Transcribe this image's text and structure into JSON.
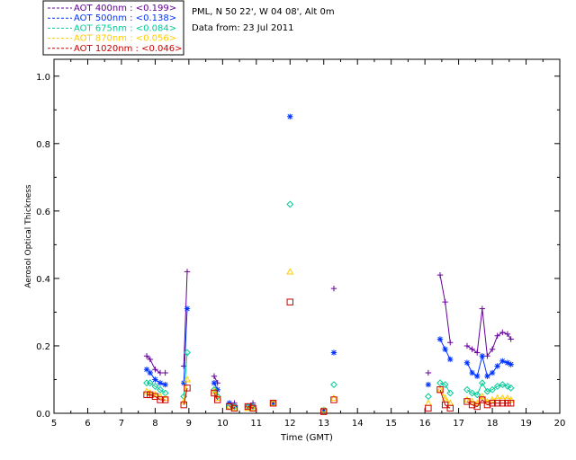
{
  "header": {
    "site": "PML, N 50 22', W 04 08', Alt 0m",
    "date_line": "Data from: 23 Jul 2011"
  },
  "chart_data": {
    "type": "line",
    "title": "",
    "xlabel": "Time (GMT)",
    "ylabel": "Aerosol Optical Thickness",
    "xlim": [
      5,
      20
    ],
    "ylim": [
      0,
      1.05
    ],
    "xticks": [
      "5",
      "6",
      "7",
      "8",
      "9",
      "10",
      "11",
      "12",
      "13",
      "14",
      "15",
      "16",
      "17",
      "18",
      "19",
      "20"
    ],
    "yticks": [
      "0.0",
      "0.2",
      "0.4",
      "0.6",
      "0.8",
      "1.0"
    ],
    "legend_position": "top-left",
    "series": [
      {
        "name": "AOT  400nm",
        "legend": "AOT  400nm : <0.199>",
        "color": "#660099",
        "marker": "plus",
        "x": [
          7.75,
          7.85,
          8.0,
          8.15,
          8.3,
          8.85,
          8.95,
          9.75,
          9.85,
          10.2,
          10.35,
          10.75,
          10.9,
          11.5,
          13.0,
          13.3,
          16.1,
          16.45,
          16.6,
          16.75,
          17.25,
          17.4,
          17.55,
          17.7,
          17.85,
          18.0,
          18.15,
          18.3,
          18.45,
          18.55
        ],
        "y": [
          0.17,
          0.16,
          0.13,
          0.12,
          0.12,
          0.14,
          0.42,
          0.11,
          0.09,
          0.03,
          0.03,
          0.02,
          0.03,
          0.03,
          0.01,
          0.37,
          0.12,
          0.41,
          0.33,
          0.21,
          0.2,
          0.19,
          0.18,
          0.31,
          0.17,
          0.19,
          0.23,
          0.24,
          0.235,
          0.22
        ]
      },
      {
        "name": "AOT  500nm",
        "legend": "AOT  500nm : <0.138>",
        "color": "#0033ff",
        "marker": "asterisk",
        "x": [
          7.75,
          7.85,
          8.0,
          8.15,
          8.3,
          8.85,
          8.95,
          9.75,
          9.85,
          10.2,
          10.35,
          10.75,
          10.9,
          11.5,
          12.0,
          13.0,
          13.3,
          16.1,
          16.45,
          16.6,
          16.75,
          17.25,
          17.4,
          17.55,
          17.7,
          17.85,
          18.0,
          18.15,
          18.3,
          18.45,
          18.55
        ],
        "y": [
          0.13,
          0.12,
          0.1,
          0.09,
          0.085,
          0.09,
          0.31,
          0.09,
          0.07,
          0.03,
          0.02,
          0.02,
          0.02,
          0.03,
          0.88,
          0.01,
          0.18,
          0.085,
          0.22,
          0.19,
          0.16,
          0.15,
          0.12,
          0.11,
          0.17,
          0.11,
          0.12,
          0.14,
          0.155,
          0.15,
          0.145
        ]
      },
      {
        "name": "AOT  675nm",
        "legend": "AOT  675nm : <0.084>",
        "color": "#00cc99",
        "marker": "diamond",
        "x": [
          7.75,
          7.85,
          8.0,
          8.15,
          8.3,
          8.85,
          8.95,
          9.75,
          9.85,
          10.2,
          10.35,
          10.75,
          10.9,
          11.5,
          12.0,
          13.0,
          13.3,
          16.1,
          16.45,
          16.6,
          16.75,
          17.25,
          17.4,
          17.55,
          17.7,
          17.85,
          18.0,
          18.15,
          18.3,
          18.45,
          18.55
        ],
        "y": [
          0.09,
          0.09,
          0.08,
          0.07,
          0.06,
          0.05,
          0.18,
          0.07,
          0.05,
          0.02,
          0.02,
          0.02,
          0.02,
          0.03,
          0.62,
          0.01,
          0.085,
          0.05,
          0.09,
          0.085,
          0.06,
          0.07,
          0.06,
          0.055,
          0.09,
          0.065,
          0.07,
          0.08,
          0.085,
          0.08,
          0.075
        ]
      },
      {
        "name": "AOT  870nm",
        "legend": "AOT  870nm : <0.056>",
        "color": "#ffcc00",
        "marker": "triangle",
        "x": [
          7.75,
          7.85,
          8.0,
          8.15,
          8.3,
          8.85,
          8.95,
          9.75,
          9.85,
          10.2,
          10.35,
          10.75,
          10.9,
          11.5,
          12.0,
          13.0,
          13.3,
          16.1,
          16.45,
          16.6,
          16.75,
          17.25,
          17.4,
          17.55,
          17.7,
          17.85,
          18.0,
          18.15,
          18.3,
          18.45,
          18.55
        ],
        "y": [
          0.065,
          0.06,
          0.055,
          0.05,
          0.045,
          0.035,
          0.1,
          0.065,
          0.045,
          0.02,
          0.015,
          0.015,
          0.015,
          0.03,
          0.42,
          0.01,
          0.045,
          0.03,
          0.07,
          0.045,
          0.03,
          0.04,
          0.035,
          0.03,
          0.05,
          0.035,
          0.04,
          0.045,
          0.045,
          0.045,
          0.04
        ]
      },
      {
        "name": "AOT 1020nm",
        "legend": "AOT 1020nm : <0.046>",
        "color": "#cc0000",
        "marker": "square",
        "x": [
          7.75,
          7.85,
          8.0,
          8.15,
          8.3,
          8.85,
          8.95,
          9.75,
          9.85,
          10.2,
          10.35,
          10.75,
          10.9,
          11.5,
          12.0,
          13.0,
          13.3,
          16.1,
          16.45,
          16.6,
          16.75,
          17.25,
          17.4,
          17.55,
          17.7,
          17.85,
          18.0,
          18.15,
          18.3,
          18.45,
          18.55
        ],
        "y": [
          0.055,
          0.055,
          0.05,
          0.04,
          0.04,
          0.025,
          0.075,
          0.06,
          0.04,
          0.02,
          0.015,
          0.02,
          0.015,
          0.03,
          0.33,
          0.005,
          0.04,
          0.015,
          0.07,
          0.025,
          0.015,
          0.035,
          0.025,
          0.02,
          0.04,
          0.025,
          0.03,
          0.03,
          0.03,
          0.03,
          0.03
        ]
      }
    ]
  }
}
